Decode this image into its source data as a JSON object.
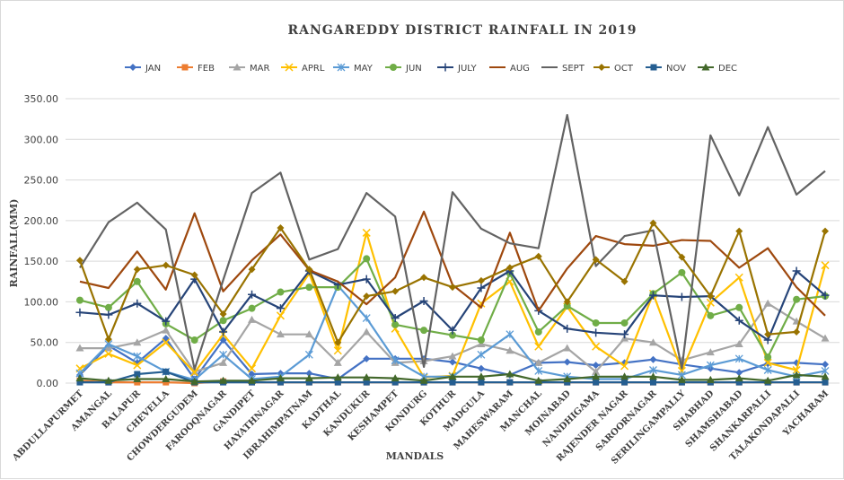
{
  "chart_data": {
    "type": "line",
    "title": "RANGAREDDY DISTRICT RAINFALL IN 2019",
    "xlabel": "MANDALS",
    "ylabel": "RAINFALL(MM)",
    "ylim": [
      0,
      350
    ],
    "yticks": [
      "0.00",
      "50.00",
      "100.00",
      "150.00",
      "200.00",
      "250.00",
      "300.00",
      "350.00"
    ],
    "ytick_values": [
      0,
      50,
      100,
      150,
      200,
      250,
      300,
      350
    ],
    "grid": true,
    "legend_position": "top",
    "categories": [
      "ABDULLAPURMET",
      "AMANGAL",
      "BALAPUR",
      "CHEVELLA",
      "CHOWDERGUDEM",
      "FAROOQNAGAR",
      "GANDIPET",
      "HAYATHNAGAR",
      "IBRAHIMPATNAM",
      "KADTHAL",
      "KANDUKUR",
      "KESHAMPET",
      "KONDURG",
      "KOTHUR",
      "MADGULA",
      "MAHESWARAM",
      "MANCHAL",
      "MOINABAD",
      "NANDHIGAMA",
      "RAJENDER NAGAR",
      "SAROORNAGAR",
      "SERILINGAMPALLY",
      "SHABHAD",
      "SHAMSHABAD",
      "SHANKARPALLI",
      "TALAKONDAPALLI",
      "YACHARAM"
    ],
    "series": [
      {
        "name": "JAN",
        "color": "#4472C4",
        "marker": "diamond",
        "values": [
          10,
          46,
          25,
          55,
          5,
          53,
          11,
          12,
          12,
          5,
          30,
          30,
          30,
          26,
          18,
          10,
          25,
          26,
          22,
          25,
          29,
          23,
          18,
          13,
          24,
          25,
          23
        ]
      },
      {
        "name": "FEB",
        "color": "#ED7D31",
        "marker": "square",
        "values": [
          3,
          1,
          1,
          1,
          0,
          2,
          1,
          1,
          1,
          1,
          1,
          1,
          1,
          1,
          1,
          1,
          1,
          1,
          1,
          1,
          1,
          1,
          1,
          1,
          1,
          1,
          1
        ]
      },
      {
        "name": "MAR",
        "color": "#A5A5A5",
        "marker": "triangle",
        "values": [
          43,
          43,
          50,
          65,
          14,
          25,
          78,
          60,
          60,
          25,
          63,
          25,
          27,
          33,
          48,
          40,
          25,
          43,
          14,
          55,
          50,
          28,
          38,
          48,
          98,
          76,
          55
        ]
      },
      {
        "name": "APRL",
        "color": "#FFC000",
        "marker": "x",
        "values": [
          18,
          36,
          22,
          50,
          13,
          60,
          18,
          83,
          135,
          40,
          185,
          67,
          7,
          9,
          98,
          125,
          45,
          94,
          45,
          21,
          110,
          15,
          99,
          130,
          25,
          16,
          145
        ]
      },
      {
        "name": "MAY",
        "color": "#5B9BD5",
        "marker": "star",
        "values": [
          12,
          48,
          33,
          14,
          4,
          35,
          5,
          8,
          35,
          120,
          80,
          28,
          8,
          8,
          35,
          60,
          15,
          8,
          5,
          5,
          16,
          10,
          22,
          30,
          16,
          8,
          15
        ]
      },
      {
        "name": "JUN",
        "color": "#70AD47",
        "marker": "circle",
        "values": [
          102,
          93,
          125,
          73,
          53,
          77,
          92,
          112,
          118,
          118,
          153,
          72,
          65,
          59,
          53,
          135,
          63,
          95,
          74,
          74,
          110,
          136,
          83,
          93,
          32,
          103,
          107
        ]
      },
      {
        "name": "JULY",
        "color": "#264478",
        "marker": "plus",
        "values": [
          87,
          84,
          98,
          76,
          128,
          63,
          109,
          92,
          138,
          121,
          128,
          80,
          101,
          65,
          117,
          138,
          89,
          67,
          62,
          60,
          108,
          106,
          107,
          77,
          53,
          138,
          108
        ]
      },
      {
        "name": "AUG",
        "color": "#9E480E",
        "marker": "none",
        "values": [
          125,
          117,
          162,
          115,
          209,
          113,
          151,
          183,
          139,
          125,
          97,
          130,
          211,
          121,
          93,
          185,
          89,
          141,
          181,
          171,
          169,
          176,
          175,
          142,
          166,
          118,
          83
        ]
      },
      {
        "name": "SEPT",
        "color": "#636363",
        "marker": "none",
        "values": [
          142,
          198,
          222,
          189,
          17,
          127,
          234,
          259,
          152,
          165,
          234,
          205,
          20,
          235,
          190,
          172,
          166,
          330,
          144,
          181,
          188,
          18,
          305,
          231,
          315,
          232,
          261
        ]
      },
      {
        "name": "OCT",
        "color": "#997300",
        "marker": "diamond",
        "values": [
          151,
          54,
          140,
          145,
          133,
          85,
          140,
          191,
          140,
          50,
          107,
          113,
          130,
          118,
          126,
          142,
          156,
          100,
          152,
          125,
          197,
          155,
          107,
          187,
          60,
          63,
          187
        ]
      },
      {
        "name": "NOV",
        "color": "#255E91",
        "marker": "square",
        "values": [
          1,
          1,
          11,
          14,
          1,
          1,
          1,
          1,
          1,
          1,
          1,
          1,
          1,
          1,
          1,
          1,
          1,
          1,
          1,
          1,
          1,
          1,
          1,
          1,
          1,
          1,
          1
        ]
      },
      {
        "name": "DEC",
        "color": "#43682B",
        "marker": "triangle",
        "values": [
          6,
          3,
          5,
          5,
          2,
          3,
          3,
          6,
          6,
          7,
          7,
          6,
          3,
          8,
          8,
          11,
          3,
          5,
          8,
          8,
          8,
          4,
          4,
          6,
          3,
          10,
          8
        ]
      }
    ]
  }
}
